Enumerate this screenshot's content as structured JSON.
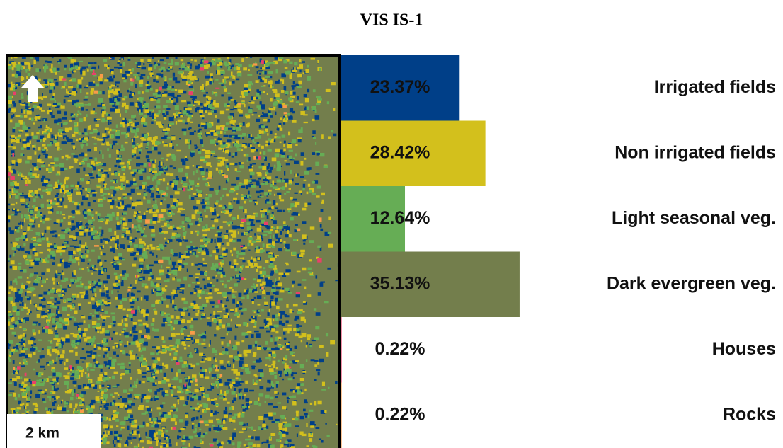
{
  "chart_data": {
    "type": "bar",
    "title": "VIS IS-1",
    "categories": [
      "Irrigated fields",
      "Non irrigated fields",
      "Light seasonal veg.",
      "Dark evergreen veg.",
      "Houses",
      "Rocks"
    ],
    "values": [
      23.37,
      28.42,
      12.64,
      35.13,
      0.22,
      0.22
    ],
    "value_labels": [
      "23.37%",
      "28.42%",
      "12.64%",
      "35.13%",
      "0.22%",
      "0.22%"
    ],
    "colors": [
      "#003f88",
      "#d3c01c",
      "#66ad55",
      "#737e4c",
      "#e8406a",
      "#f99b48"
    ]
  },
  "map": {
    "scale_label": "2 km"
  }
}
